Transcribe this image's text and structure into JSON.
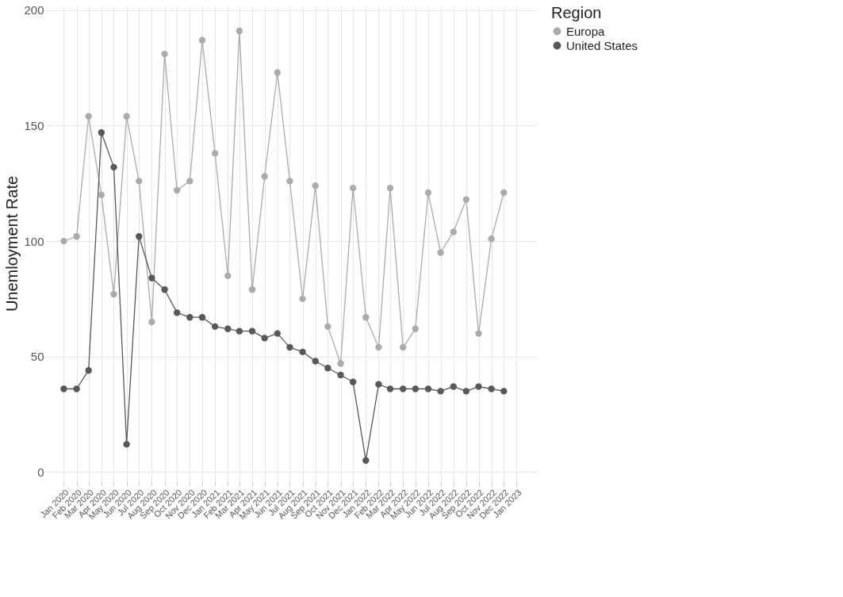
{
  "chart_data": {
    "type": "line",
    "ylabel": "Unemloyment Rate",
    "legend_title": "Region",
    "legend": "right",
    "grid": true,
    "marker": "circle",
    "line_style": "solid",
    "x": [
      "2020-01",
      "2020-02",
      "2020-03",
      "2020-04",
      "2020-05",
      "2020-06",
      "2020-07",
      "2020-08",
      "2020-09",
      "2020-10",
      "2020-11",
      "2020-12",
      "2021-01",
      "2021-02",
      "2021-03",
      "2021-04",
      "2021-05",
      "2021-06",
      "2021-07",
      "2021-08",
      "2021-09",
      "2021-10",
      "2021-11",
      "2021-12",
      "2022-01",
      "2022-02",
      "2022-03",
      "2022-04",
      "2022-05",
      "2022-06",
      "2022-07",
      "2022-08",
      "2022-09",
      "2022-10",
      "2022-11",
      "2022-12"
    ],
    "xlim": [
      "2019-11-17",
      "2023-02-19"
    ],
    "xticks": [
      {
        "value": "2020-01",
        "label": "Jan 2020"
      },
      {
        "value": "2020-02",
        "label": "Feb 2020"
      },
      {
        "value": "2020-03",
        "label": "Mar 2020"
      },
      {
        "value": "2020-04",
        "label": "Apr 2020"
      },
      {
        "value": "2020-05",
        "label": "May 2020"
      },
      {
        "value": "2020-06",
        "label": "Jun 2020"
      },
      {
        "value": "2020-07",
        "label": "Jul 2020"
      },
      {
        "value": "2020-08",
        "label": "Aug 2020"
      },
      {
        "value": "2020-09",
        "label": "Sep 2020"
      },
      {
        "value": "2020-10",
        "label": "Oct 2020"
      },
      {
        "value": "2020-11",
        "label": "Nov 2020"
      },
      {
        "value": "2020-12",
        "label": "Dec 2020"
      },
      {
        "value": "2021-01",
        "label": "Jan 2021"
      },
      {
        "value": "2021-02",
        "label": "Feb 2021"
      },
      {
        "value": "2021-03",
        "label": "Mar 2021"
      },
      {
        "value": "2021-04",
        "label": "Apr 2021"
      },
      {
        "value": "2021-05",
        "label": "May 2021"
      },
      {
        "value": "2021-06",
        "label": "Jun 2021"
      },
      {
        "value": "2021-07",
        "label": "Jul 2021"
      },
      {
        "value": "2021-08",
        "label": "Aug 2021"
      },
      {
        "value": "2021-09",
        "label": "Sep 2021"
      },
      {
        "value": "2021-10",
        "label": "Oct 2021"
      },
      {
        "value": "2021-11",
        "label": "Nov 2021"
      },
      {
        "value": "2021-12",
        "label": "Dec 2021"
      },
      {
        "value": "2022-01",
        "label": "Jan 2022"
      },
      {
        "value": "2022-02",
        "label": "Feb 2022"
      },
      {
        "value": "2022-03",
        "label": "Mar 2022"
      },
      {
        "value": "2022-04",
        "label": "Apr 2022"
      },
      {
        "value": "2022-05",
        "label": "May 2022"
      },
      {
        "value": "2022-06",
        "label": "Jun 2022"
      },
      {
        "value": "2022-07",
        "label": "Jul 2022"
      },
      {
        "value": "2022-08",
        "label": "Aug 2022"
      },
      {
        "value": "2022-09",
        "label": "Sep 2022"
      },
      {
        "value": "2022-10",
        "label": "Oct 2022"
      },
      {
        "value": "2022-11",
        "label": "Nov 2022"
      },
      {
        "value": "2022-12",
        "label": "Dec 2022"
      },
      {
        "value": "2023-01",
        "label": "Jan 2023"
      }
    ],
    "ylim": [
      -4,
      202
    ],
    "yticks": [
      0,
      50,
      100,
      150,
      200
    ],
    "series": [
      {
        "name": "Europa",
        "color": "#ababab",
        "values": [
          100,
          102,
          154,
          120,
          77,
          154,
          126,
          65,
          181,
          122,
          126,
          187,
          138,
          85,
          191,
          79,
          128,
          173,
          126,
          75,
          124,
          63,
          47,
          123,
          67,
          54,
          123,
          54,
          62,
          121,
          95,
          104,
          118,
          60,
          101,
          121
        ]
      },
      {
        "name": "United States",
        "color": "#585858",
        "values": [
          36,
          36,
          44,
          147,
          132,
          12,
          102,
          84,
          79,
          69,
          67,
          67,
          63,
          62,
          61,
          61,
          58,
          60,
          54,
          52,
          48,
          45,
          42,
          39,
          5,
          38,
          36,
          36,
          36,
          36,
          35,
          37,
          35,
          37,
          36,
          35
        ]
      }
    ]
  }
}
